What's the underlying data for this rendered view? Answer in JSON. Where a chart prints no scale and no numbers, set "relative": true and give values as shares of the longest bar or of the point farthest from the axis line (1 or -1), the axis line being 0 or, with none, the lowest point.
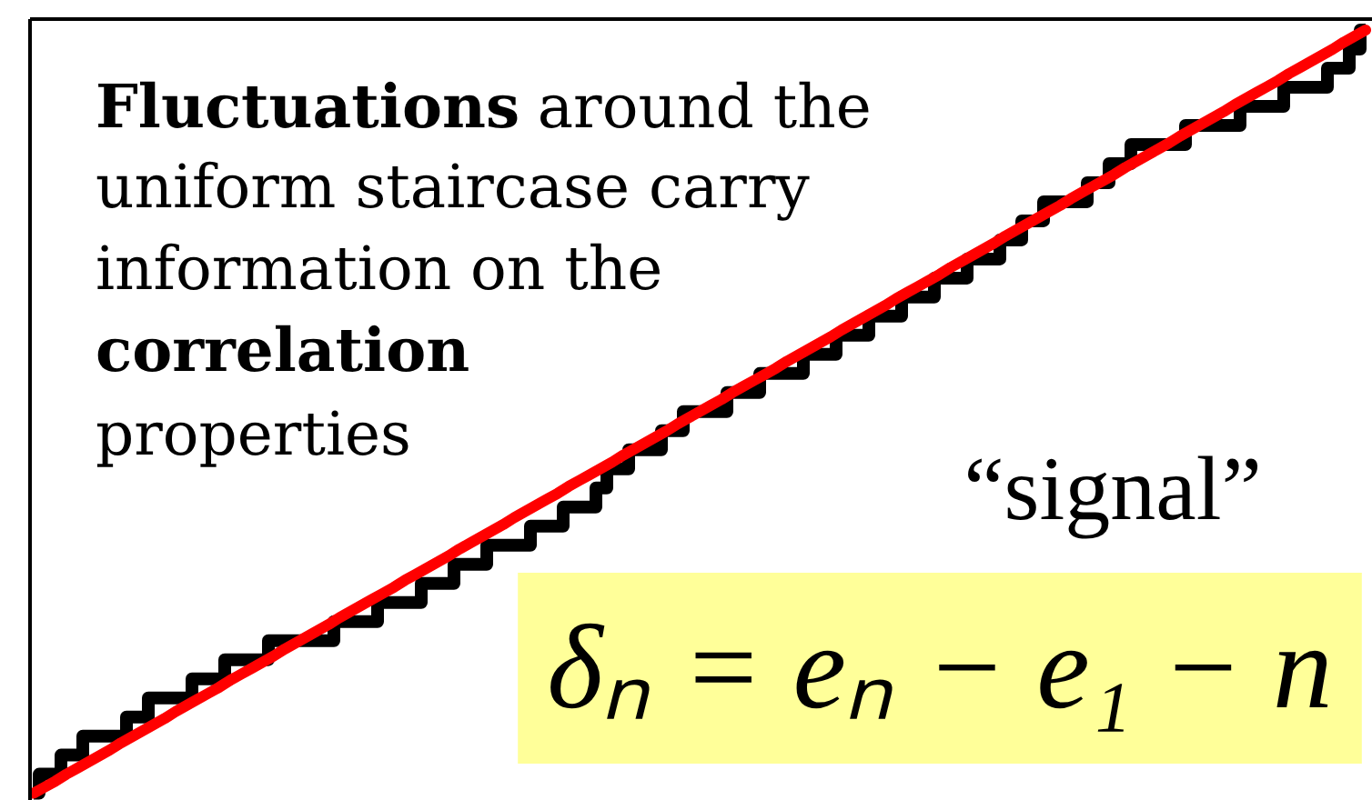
{
  "chart_data": {
    "type": "step",
    "relative": true,
    "categories": [
      null,
      null,
      null,
      null,
      null,
      null,
      null,
      null,
      null,
      null,
      null,
      null,
      null,
      null,
      null,
      null,
      null,
      null,
      null,
      null,
      null,
      null,
      null,
      null,
      null,
      null,
      null,
      null,
      null,
      null,
      null,
      null,
      null,
      null,
      null,
      null,
      null,
      null,
      null,
      null,
      null,
      null,
      null,
      null,
      null,
      null,
      null,
      null,
      null,
      null,
      null,
      null,
      null,
      null,
      null,
      null,
      null,
      null,
      null,
      null,
      null,
      null,
      null,
      null,
      null,
      null,
      null,
      null,
      null,
      null,
      null,
      null,
      null,
      null,
      null,
      null,
      null,
      null,
      null,
      null,
      null,
      null,
      null,
      null,
      null,
      null,
      null,
      null,
      null,
      null,
      null,
      null,
      null,
      null,
      null,
      null,
      null,
      null,
      null,
      null,
      null,
      null,
      null,
      null,
      null,
      null,
      null,
      null,
      null,
      null,
      null,
      null,
      null,
      null,
      null,
      null,
      null,
      null,
      null,
      null,
      null,
      null,
      null
    ],
    "series": [
      {
        "color": "#000000",
        "values": [
          0,
          0.025,
          0.025,
          0.05,
          0.05,
          0.075,
          0.075,
          0.075,
          0.075,
          0.1,
          0.1,
          0.125,
          0.125,
          0.125,
          0.125,
          0.15,
          0.15,
          0.15,
          0.175,
          0.175,
          0.175,
          0.175,
          0.2,
          0.2,
          0.2,
          0.2,
          0.2,
          0.2,
          0.225,
          0.225,
          0.225,
          0.225,
          0.25,
          0.25,
          0.25,
          0.25,
          0.275,
          0.275,
          0.275,
          0.3,
          0.3,
          0.3,
          0.325,
          0.325,
          0.325,
          0.325,
          0.35,
          0.35,
          0.35,
          0.375,
          0.375,
          0.375,
          0.4,
          0.425,
          0.425,
          0.45,
          0.45,
          0.45,
          0.475,
          0.475,
          0.5,
          0.5,
          0.5,
          0.5,
          0.525,
          0.525,
          0.525,
          0.55,
          0.55,
          0.55,
          0.55,
          0.575,
          0.575,
          0.575,
          0.6,
          0.6,
          0.6,
          0.625,
          0.625,
          0.625,
          0.65,
          0.65,
          0.65,
          0.675,
          0.675,
          0.675,
          0.7,
          0.7,
          0.7,
          0.725,
          0.725,
          0.75,
          0.75,
          0.775,
          0.775,
          0.775,
          0.775,
          0.8,
          0.8,
          0.825,
          0.825,
          0.85,
          0.85,
          0.85,
          0.85,
          0.85,
          0.875,
          0.875,
          0.875,
          0.875,
          0.875,
          0.9,
          0.9,
          0.9,
          0.9,
          0.925,
          0.925,
          0.925,
          0.925,
          0.95,
          0.95,
          0.975,
          1
        ]
      },
      {
        "type": "line",
        "color": "#ff0000",
        "values": [
          0,
          0.008,
          0.016,
          0.025,
          0.033,
          0.041,
          0.049,
          0.057,
          0.066,
          0.074,
          0.082,
          0.09,
          0.098,
          0.107,
          0.115,
          0.123,
          0.131,
          0.139,
          0.148,
          0.156,
          0.164,
          0.172,
          0.18,
          0.189,
          0.197,
          0.205,
          0.213,
          0.221,
          0.23,
          0.238,
          0.246,
          0.254,
          0.262,
          0.27,
          0.279,
          0.287,
          0.295,
          0.303,
          0.311,
          0.32,
          0.328,
          0.336,
          0.344,
          0.352,
          0.361,
          0.369,
          0.377,
          0.385,
          0.393,
          0.402,
          0.41,
          0.418,
          0.426,
          0.434,
          0.443,
          0.451,
          0.459,
          0.467,
          0.475,
          0.484,
          0.492,
          0.5,
          0.508,
          0.516,
          0.525,
          0.533,
          0.541,
          0.549,
          0.557,
          0.566,
          0.574,
          0.582,
          0.59,
          0.598,
          0.607,
          0.615,
          0.623,
          0.631,
          0.639,
          0.648,
          0.656,
          0.664,
          0.672,
          0.68,
          0.689,
          0.697,
          0.705,
          0.713,
          0.721,
          0.73,
          0.738,
          0.746,
          0.754,
          0.762,
          0.77,
          0.779,
          0.787,
          0.795,
          0.803,
          0.811,
          0.82,
          0.828,
          0.836,
          0.844,
          0.852,
          0.861,
          0.869,
          0.877,
          0.885,
          0.893,
          0.902,
          0.91,
          0.918,
          0.926,
          0.934,
          0.943,
          0.951,
          0.959,
          0.967,
          0.975,
          0.984,
          0.992,
          1
        ]
      }
    ],
    "annotations": [
      "Fluctuations around the uniform staircase carry information on the correlation properties",
      "“signal”",
      "δₙ = eₙ − e₁ − n"
    ]
  }
}
